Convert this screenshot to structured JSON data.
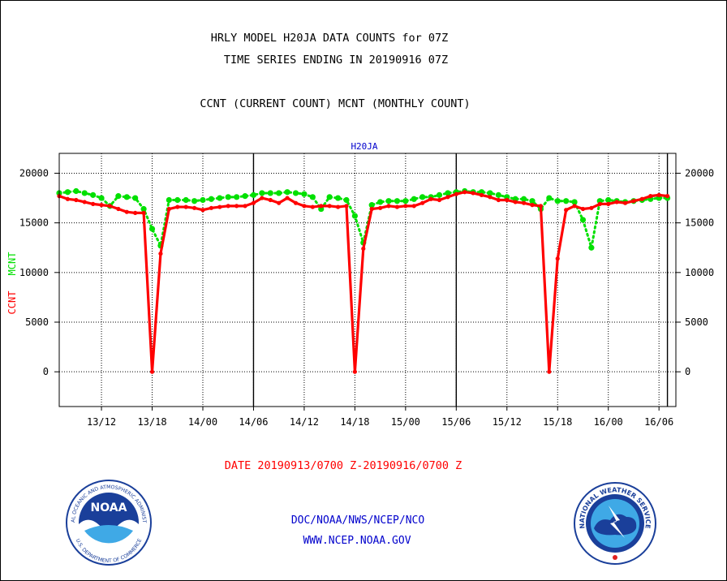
{
  "header": {
    "title_line1": "HRLY MODEL H20JA DATA COUNTS for 07Z",
    "title_line2": "TIME SERIES ENDING IN 20190916 07Z",
    "subtitle": "CCNT (CURRENT COUNT) MCNT (MONTHLY COUNT)"
  },
  "footer": {
    "date_range": "DATE 20190913/0700 Z-20190916/0700 Z",
    "org": "DOC/NOAA/NWS/NCEP/NCO",
    "url": "WWW.NCEP.NOAA.GOV"
  },
  "logos": {
    "noaa_label": "NOAA",
    "noaa_ring_top": "NATIONAL OCEANIC AND ATMOSPHERIC ADMINISTRATION",
    "noaa_ring_bottom": "U.S. DEPARTMENT OF COMMERCE",
    "nws_ring": "NATIONAL WEATHER SERVICE"
  },
  "colors": {
    "ccnt": "#ff0000",
    "mcnt": "#00e000",
    "plot_title": "#0000cc",
    "footer_blue": "#0000cc",
    "footer_red": "#ff0000"
  },
  "chart_data": {
    "type": "line",
    "title": "H20JA",
    "ylabel_ccnt": "CCNT",
    "ylabel_mcnt": "MCNT",
    "xlim_hours": [
      0,
      73
    ],
    "ylim": [
      -3500,
      22000
    ],
    "yticks": [
      0,
      5000,
      10000,
      15000,
      20000
    ],
    "ytick_labels": [
      "0",
      "5000",
      "10000",
      "15000",
      "20000"
    ],
    "xticks": [
      {
        "hour": 5,
        "label": "13/12"
      },
      {
        "hour": 11,
        "label": "13/18"
      },
      {
        "hour": 17,
        "label": "14/00"
      },
      {
        "hour": 23,
        "label": "14/06"
      },
      {
        "hour": 29,
        "label": "14/12"
      },
      {
        "hour": 35,
        "label": "14/18"
      },
      {
        "hour": 41,
        "label": "15/00"
      },
      {
        "hour": 47,
        "label": "15/06"
      },
      {
        "hour": 53,
        "label": "15/12"
      },
      {
        "hour": 59,
        "label": "15/18"
      },
      {
        "hour": 65,
        "label": "16/00"
      },
      {
        "hour": 71,
        "label": "16/06"
      }
    ],
    "day_lines_hours": [
      23,
      47,
      72
    ],
    "grid": true,
    "series": [
      {
        "name": "CCNT",
        "style": "line-with-markers",
        "values": [
          17700,
          17400,
          17300,
          17100,
          16900,
          16800,
          16700,
          16400,
          16100,
          16000,
          16000,
          0,
          11900,
          16400,
          16600,
          16600,
          16500,
          16300,
          16500,
          16600,
          16700,
          16700,
          16700,
          17000,
          17500,
          17300,
          17000,
          17500,
          17000,
          16700,
          16600,
          16700,
          16700,
          16600,
          16700,
          0,
          12400,
          16400,
          16500,
          16700,
          16600,
          16700,
          16700,
          17000,
          17400,
          17300,
          17600,
          17900,
          18100,
          18000,
          17800,
          17600,
          17300,
          17300,
          17100,
          17000,
          16800,
          16700,
          0,
          11400,
          16300,
          16700,
          16400,
          16500,
          16900,
          16900,
          17100,
          17000,
          17200,
          17400,
          17700,
          17800,
          17700
        ]
      },
      {
        "name": "MCNT",
        "style": "dotted-markers",
        "values": [
          18000,
          18100,
          18200,
          18000,
          17800,
          17500,
          16700,
          17700,
          17600,
          17500,
          16400,
          14400,
          12700,
          17300,
          17300,
          17300,
          17200,
          17300,
          17400,
          17500,
          17600,
          17600,
          17700,
          17800,
          18000,
          18000,
          18000,
          18100,
          18000,
          17900,
          17600,
          16400,
          17600,
          17500,
          17300,
          15700,
          13000,
          16800,
          17100,
          17200,
          17200,
          17200,
          17400,
          17600,
          17600,
          17800,
          18000,
          18100,
          18200,
          18100,
          18100,
          18000,
          17800,
          17600,
          17400,
          17400,
          17200,
          16400,
          17500,
          17200,
          17200,
          17100,
          15300,
          12500,
          17200,
          17300,
          17200,
          17100,
          17200,
          17300,
          17400,
          17500,
          17500
        ]
      }
    ]
  }
}
